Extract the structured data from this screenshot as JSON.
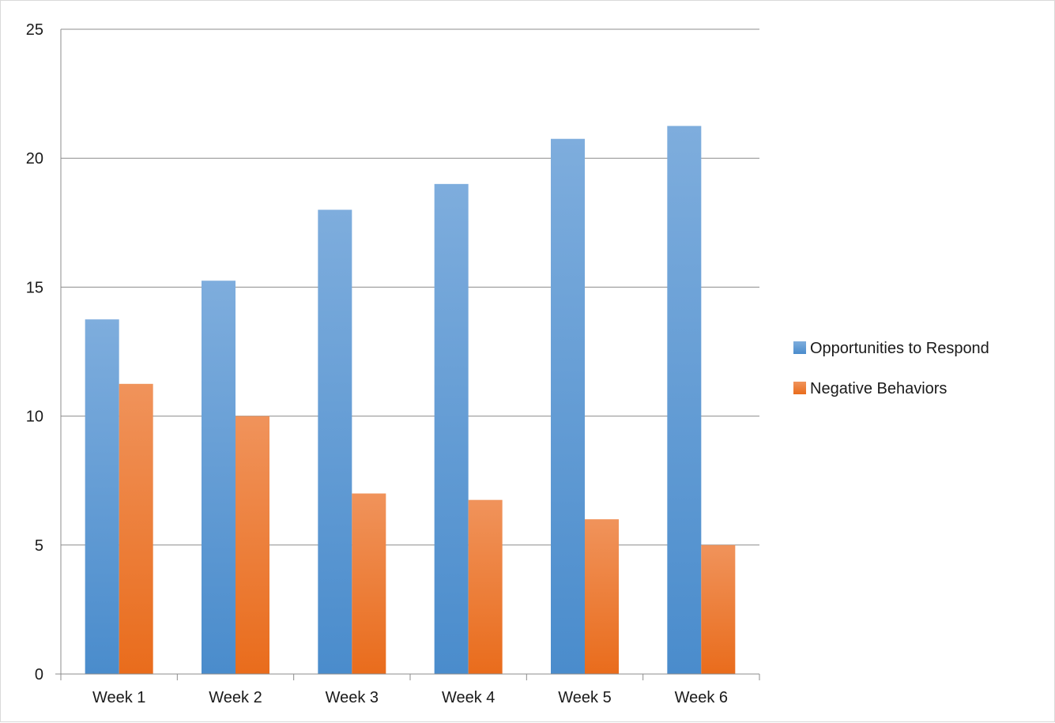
{
  "chart_data": {
    "type": "bar",
    "title": "",
    "xlabel": "",
    "ylabel": "",
    "categories": [
      "Week 1",
      "Week 2",
      "Week 3",
      "Week 4",
      "Week 5",
      "Week 6"
    ],
    "series": [
      {
        "name": "Opportunities to Respond",
        "values": [
          13.75,
          15.25,
          18,
          19,
          20.75,
          21.25
        ],
        "color": "#5b9bd5",
        "gradient": [
          "#7eaddd",
          "#4a8ccc"
        ]
      },
      {
        "name": "Negative Behaviors",
        "values": [
          11.25,
          10,
          7,
          6.75,
          6,
          5
        ],
        "color": "#ed7d31",
        "gradient": [
          "#f0935b",
          "#e96c1c"
        ]
      }
    ],
    "ylim": [
      0,
      25
    ],
    "yticks": [
      0,
      5,
      10,
      15,
      20,
      25
    ],
    "grid": true,
    "legend_position": "right"
  }
}
